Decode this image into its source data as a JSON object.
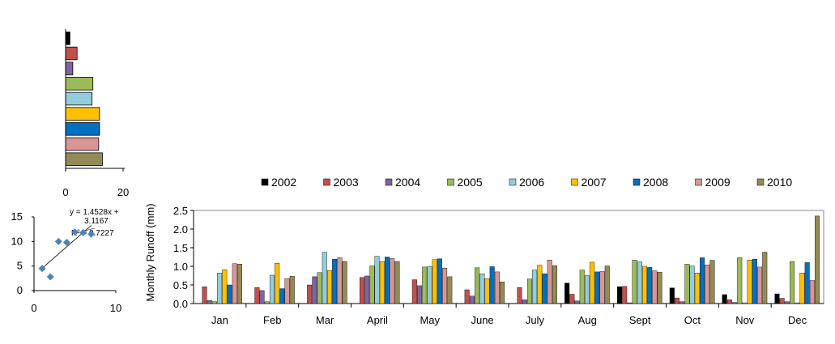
{
  "chart_data": [
    {
      "type": "bar",
      "orientation": "horizontal",
      "categories": [
        "2002",
        "2003",
        "2004",
        "2005",
        "2006",
        "2007",
        "2008",
        "2009",
        "2010"
      ],
      "values": [
        1.5,
        4,
        2.5,
        9.5,
        9.2,
        11.8,
        11.8,
        11.5,
        12.8
      ],
      "xlim": [
        0,
        20
      ],
      "xticks": [
        "0",
        "20"
      ],
      "colors": [
        "#000000",
        "#c0504d",
        "#8064a2",
        "#9bbb59",
        "#92cddc",
        "#ffc000",
        "#0070c0",
        "#d99694",
        "#948a54"
      ]
    },
    {
      "type": "scatter",
      "x": [
        1,
        2,
        3,
        4,
        5,
        6,
        7
      ],
      "y": [
        4.5,
        2.8,
        10,
        9.8,
        11.9,
        11.8,
        11.5
      ],
      "xlim": [
        0,
        10
      ],
      "ylim": [
        0,
        15
      ],
      "xticks": [
        "0",
        "10"
      ],
      "yticks": [
        "0",
        "5",
        "10",
        "15"
      ],
      "equation_line1": "y = 1.4528x +",
      "equation_line2": "3.1167",
      "r2_label": "R² = 0.7227",
      "color": "#4f81bd"
    },
    {
      "type": "bar",
      "categories": [
        "Jan",
        "Feb",
        "Mar",
        "April",
        "May",
        "June",
        "July",
        "Aug",
        "Sept",
        "Oct",
        "Nov",
        "Dec"
      ],
      "ylabel": "Monthly  Runoff (mm)",
      "ylim": [
        0,
        2.5
      ],
      "yticks": [
        "0.0",
        "0.5",
        "1.0",
        "1.5",
        "2.0",
        "2.5"
      ],
      "legend": "top",
      "series": [
        {
          "name": "2002",
          "color": "#000000",
          "values": [
            0,
            0,
            0,
            0,
            0,
            0,
            0,
            0.55,
            0.45,
            0.42,
            0.24,
            0.26
          ]
        },
        {
          "name": "2003",
          "color": "#c0504d",
          "values": [
            0.45,
            0.43,
            0.5,
            0.7,
            0.64,
            0.37,
            0.43,
            0.25,
            0.46,
            0.15,
            0.1,
            0.14
          ]
        },
        {
          "name": "2004",
          "color": "#8064a2",
          "values": [
            0.08,
            0.35,
            0.72,
            0.74,
            0.48,
            0.2,
            0.1,
            0.07,
            0.02,
            0.05,
            0.03,
            0.05
          ]
        },
        {
          "name": "2005",
          "color": "#9bbb59",
          "values": [
            0.05,
            0.05,
            0.83,
            1.01,
            0.98,
            0.96,
            0.66,
            0.9,
            1.17,
            1.06,
            1.23,
            1.13
          ]
        },
        {
          "name": "2006",
          "color": "#92cddc",
          "values": [
            0.82,
            0.76,
            1.38,
            1.27,
            1.0,
            0.8,
            0.9,
            0.75,
            1.12,
            1.01,
            0.02,
            0.02
          ]
        },
        {
          "name": "2007",
          "color": "#ffc000",
          "values": [
            0.91,
            1.08,
            0.89,
            1.13,
            1.18,
            0.67,
            1.03,
            1.11,
            1.0,
            0.82,
            1.17,
            0.82
          ]
        },
        {
          "name": "2008",
          "color": "#0070c0",
          "values": [
            0.5,
            0.4,
            1.19,
            1.25,
            1.2,
            0.99,
            0.8,
            0.85,
            0.97,
            1.23,
            1.19,
            1.1
          ]
        },
        {
          "name": "2009",
          "color": "#d99694",
          "values": [
            1.07,
            0.67,
            1.23,
            1.21,
            0.95,
            0.85,
            1.17,
            0.86,
            0.88,
            1.04,
            0.98,
            0.62
          ]
        },
        {
          "name": "2010",
          "color": "#948a54",
          "values": [
            1.06,
            0.73,
            1.13,
            1.13,
            0.72,
            0.58,
            1.02,
            1.01,
            0.84,
            1.16,
            1.38,
            2.35
          ]
        }
      ]
    }
  ]
}
